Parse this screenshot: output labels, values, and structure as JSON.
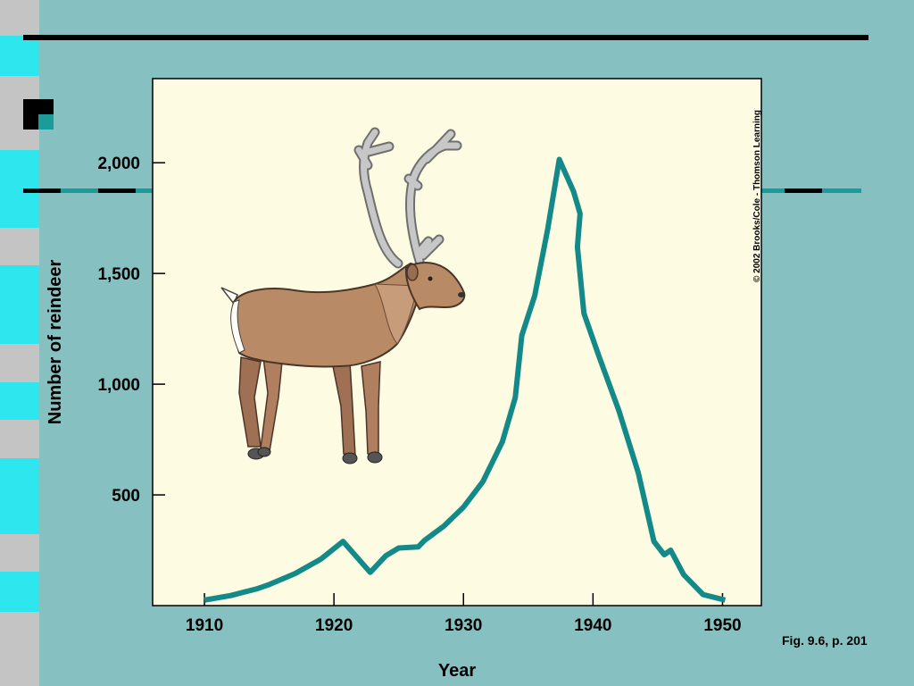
{
  "colors": {
    "background": "#86c0c0",
    "plot_background": "#fefbe3",
    "curve": "#138a88",
    "stripe_light": "#2ee6ee",
    "stripe_gray": "#c4c4c4",
    "dash_teal": "#1a9c9a"
  },
  "caption": "Fig. 9.6, p. 201",
  "credit": "© 2002 Brooks/Cole - Thomson Learning",
  "illustration": "reindeer-illustration",
  "chart_data": {
    "type": "line",
    "title": "",
    "xlabel": "Year",
    "ylabel": "Number of reindeer",
    "xlim": [
      1906,
      1953
    ],
    "ylim": [
      0,
      2380
    ],
    "x_ticks": [
      1910,
      1920,
      1930,
      1940,
      1950
    ],
    "x_tick_labels": [
      "1910",
      "1920",
      "1930",
      "1940",
      "1950"
    ],
    "y_ticks": [
      500,
      1000,
      1500,
      2000
    ],
    "y_tick_labels": [
      "500",
      "1,000",
      "1,500",
      "2,000"
    ],
    "grid": false,
    "series": [
      {
        "points": [
          [
            1910,
            25
          ],
          [
            1912,
            45
          ],
          [
            1914,
            75
          ],
          [
            1915,
            95
          ],
          [
            1917,
            145
          ],
          [
            1919,
            210
          ],
          [
            1920.7,
            290
          ],
          [
            1922.8,
            150
          ],
          [
            1924,
            225
          ],
          [
            1925,
            260
          ],
          [
            1926.5,
            265
          ],
          [
            1927,
            295
          ],
          [
            1928.5,
            360
          ],
          [
            1930,
            445
          ],
          [
            1931.5,
            560
          ],
          [
            1933,
            740
          ],
          [
            1934,
            940
          ],
          [
            1934.5,
            1220
          ],
          [
            1935.5,
            1400
          ],
          [
            1936.5,
            1700
          ],
          [
            1937.4,
            2015
          ],
          [
            1938.5,
            1870
          ],
          [
            1939,
            1770
          ],
          [
            1938.8,
            1620
          ],
          [
            1939.3,
            1320
          ],
          [
            1940.5,
            1120
          ],
          [
            1942,
            880
          ],
          [
            1943.5,
            600
          ],
          [
            1944.7,
            290
          ],
          [
            1945.5,
            230
          ],
          [
            1946,
            250
          ],
          [
            1947,
            140
          ],
          [
            1948.5,
            50
          ],
          [
            1950.2,
            25
          ]
        ]
      }
    ]
  }
}
